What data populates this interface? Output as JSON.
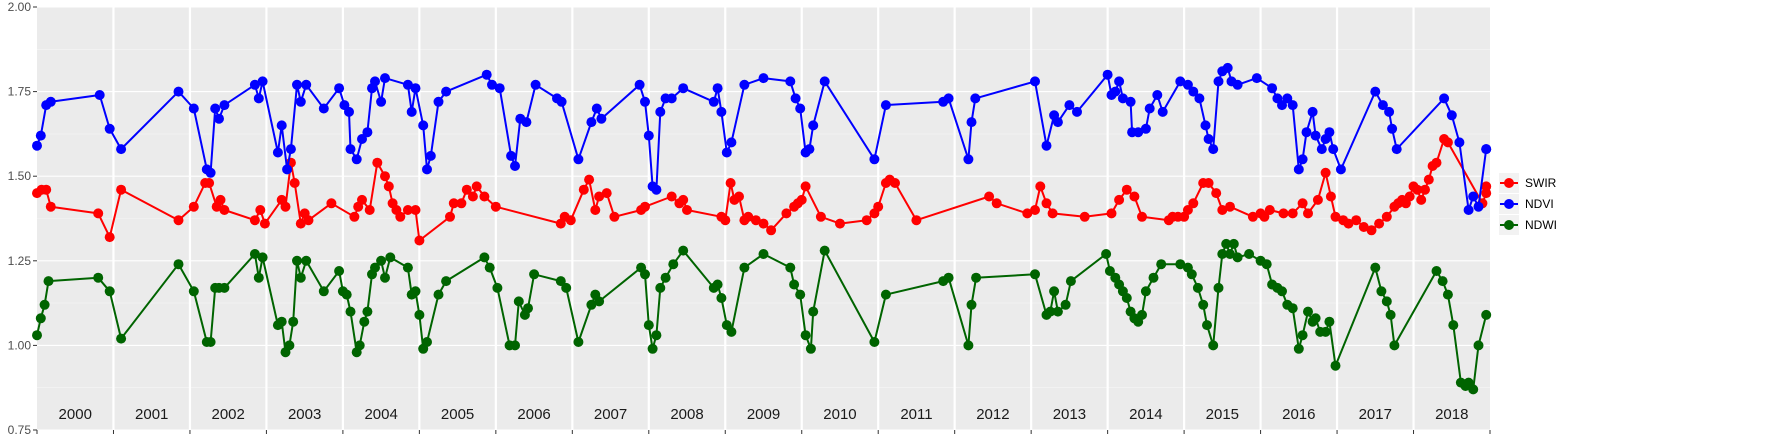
{
  "chart_data": {
    "type": "line",
    "title": "",
    "xlabel": "",
    "ylabel": "",
    "ylim": [
      0.75,
      2.0
    ],
    "xlim": [
      1999.93,
      2018.95
    ],
    "y_ticks": [
      "0.75",
      "1.00",
      "1.25",
      "1.50",
      "1.75",
      "2.00"
    ],
    "y_tick_values": [
      0.75,
      1.0,
      1.25,
      1.5,
      1.75,
      2.0
    ],
    "panel_background": "#ebebeb",
    "grid": true,
    "legend_position": "right",
    "years": [
      "2000",
      "2001",
      "2002",
      "2003",
      "2004",
      "2005",
      "2006",
      "2007",
      "2008",
      "2009",
      "2010",
      "2011",
      "2012",
      "2013",
      "2014",
      "2015",
      "2016",
      "2017",
      "2018"
    ],
    "series": [
      {
        "name": "SWIR",
        "color": "#ff0000",
        "points": [
          [
            2000.0,
            1.45
          ],
          [
            2000.06,
            1.46
          ],
          [
            2000.12,
            1.46
          ],
          [
            2000.18,
            1.41
          ],
          [
            2000.8,
            1.39
          ],
          [
            2000.95,
            1.32
          ],
          [
            2001.1,
            1.46
          ],
          [
            2001.85,
            1.37
          ],
          [
            2002.05,
            1.41
          ],
          [
            2002.2,
            1.48
          ],
          [
            2002.25,
            1.48
          ],
          [
            2002.35,
            1.41
          ],
          [
            2002.4,
            1.43
          ],
          [
            2002.45,
            1.4
          ],
          [
            2002.85,
            1.37
          ],
          [
            2002.92,
            1.4
          ],
          [
            2002.98,
            1.36
          ],
          [
            2003.2,
            1.43
          ],
          [
            2003.25,
            1.41
          ],
          [
            2003.32,
            1.54
          ],
          [
            2003.37,
            1.48
          ],
          [
            2003.45,
            1.36
          ],
          [
            2003.5,
            1.39
          ],
          [
            2003.55,
            1.37
          ],
          [
            2003.85,
            1.42
          ],
          [
            2004.15,
            1.38
          ],
          [
            2004.2,
            1.41
          ],
          [
            2004.25,
            1.43
          ],
          [
            2004.35,
            1.4
          ],
          [
            2004.45,
            1.54
          ],
          [
            2004.55,
            1.5
          ],
          [
            2004.6,
            1.47
          ],
          [
            2004.65,
            1.42
          ],
          [
            2004.7,
            1.4
          ],
          [
            2004.75,
            1.38
          ],
          [
            2004.85,
            1.4
          ],
          [
            2004.95,
            1.4
          ],
          [
            2005.0,
            1.31
          ],
          [
            2005.4,
            1.38
          ],
          [
            2005.45,
            1.42
          ],
          [
            2005.55,
            1.42
          ],
          [
            2005.62,
            1.46
          ],
          [
            2005.7,
            1.44
          ],
          [
            2005.75,
            1.47
          ],
          [
            2005.85,
            1.44
          ],
          [
            2006.0,
            1.41
          ],
          [
            2006.85,
            1.36
          ],
          [
            2006.9,
            1.38
          ],
          [
            2006.98,
            1.37
          ],
          [
            2007.15,
            1.46
          ],
          [
            2007.22,
            1.49
          ],
          [
            2007.3,
            1.4
          ],
          [
            2007.35,
            1.44
          ],
          [
            2007.45,
            1.45
          ],
          [
            2007.55,
            1.38
          ],
          [
            2007.9,
            1.4
          ],
          [
            2007.95,
            1.41
          ],
          [
            2008.3,
            1.44
          ],
          [
            2008.4,
            1.42
          ],
          [
            2008.45,
            1.43
          ],
          [
            2008.5,
            1.4
          ],
          [
            2008.95,
            1.38
          ],
          [
            2009.0,
            1.37
          ],
          [
            2009.07,
            1.48
          ],
          [
            2009.12,
            1.43
          ],
          [
            2009.18,
            1.44
          ],
          [
            2009.25,
            1.37
          ],
          [
            2009.3,
            1.38
          ],
          [
            2009.4,
            1.37
          ],
          [
            2009.5,
            1.36
          ],
          [
            2009.6,
            1.34
          ],
          [
            2009.8,
            1.39
          ],
          [
            2009.9,
            1.41
          ],
          [
            2009.95,
            1.42
          ],
          [
            2010.0,
            1.43
          ],
          [
            2010.05,
            1.47
          ],
          [
            2010.25,
            1.38
          ],
          [
            2010.5,
            1.36
          ],
          [
            2010.85,
            1.37
          ],
          [
            2010.95,
            1.39
          ],
          [
            2011.0,
            1.41
          ],
          [
            2011.1,
            1.48
          ],
          [
            2011.15,
            1.49
          ],
          [
            2011.22,
            1.48
          ],
          [
            2011.5,
            1.37
          ],
          [
            2012.45,
            1.44
          ],
          [
            2012.55,
            1.42
          ],
          [
            2012.95,
            1.39
          ],
          [
            2013.05,
            1.4
          ],
          [
            2013.12,
            1.47
          ],
          [
            2013.2,
            1.42
          ],
          [
            2013.28,
            1.39
          ],
          [
            2013.7,
            1.38
          ],
          [
            2014.05,
            1.39
          ],
          [
            2014.15,
            1.43
          ],
          [
            2014.25,
            1.46
          ],
          [
            2014.35,
            1.44
          ],
          [
            2014.45,
            1.38
          ],
          [
            2014.8,
            1.37
          ],
          [
            2014.85,
            1.38
          ],
          [
            2014.92,
            1.38
          ],
          [
            2015.0,
            1.38
          ],
          [
            2015.05,
            1.4
          ],
          [
            2015.12,
            1.42
          ],
          [
            2015.25,
            1.48
          ],
          [
            2015.32,
            1.48
          ],
          [
            2015.42,
            1.45
          ],
          [
            2015.5,
            1.4
          ],
          [
            2015.6,
            1.41
          ],
          [
            2015.9,
            1.38
          ],
          [
            2016.0,
            1.39
          ],
          [
            2016.05,
            1.38
          ],
          [
            2016.12,
            1.4
          ],
          [
            2016.3,
            1.39
          ],
          [
            2016.42,
            1.39
          ],
          [
            2016.55,
            1.42
          ],
          [
            2016.62,
            1.39
          ],
          [
            2016.75,
            1.43
          ],
          [
            2016.85,
            1.51
          ],
          [
            2016.92,
            1.44
          ],
          [
            2016.98,
            1.38
          ],
          [
            2017.08,
            1.37
          ],
          [
            2017.15,
            1.36
          ],
          [
            2017.25,
            1.37
          ],
          [
            2017.35,
            1.35
          ],
          [
            2017.45,
            1.34
          ],
          [
            2017.55,
            1.36
          ],
          [
            2017.65,
            1.38
          ],
          [
            2017.75,
            1.41
          ],
          [
            2017.8,
            1.42
          ],
          [
            2017.85,
            1.43
          ],
          [
            2017.9,
            1.42
          ],
          [
            2017.95,
            1.44
          ],
          [
            2018.0,
            1.47
          ],
          [
            2018.05,
            1.46
          ],
          [
            2018.1,
            1.43
          ],
          [
            2018.15,
            1.46
          ],
          [
            2018.2,
            1.49
          ],
          [
            2018.25,
            1.53
          ],
          [
            2018.3,
            1.54
          ],
          [
            2018.4,
            1.61
          ],
          [
            2018.45,
            1.6
          ],
          [
            2018.9,
            1.42
          ],
          [
            2018.95,
            1.45
          ],
          [
            2019.0,
            1.47
          ]
        ],
        "note": ""
      }
    ]
  },
  "legend": {
    "items": [
      {
        "name": "SWIR",
        "color": "#ff0000"
      },
      {
        "name": "NDVI",
        "color": "#0000ff"
      },
      {
        "name": "NDWI",
        "color": "#006400"
      }
    ]
  }
}
